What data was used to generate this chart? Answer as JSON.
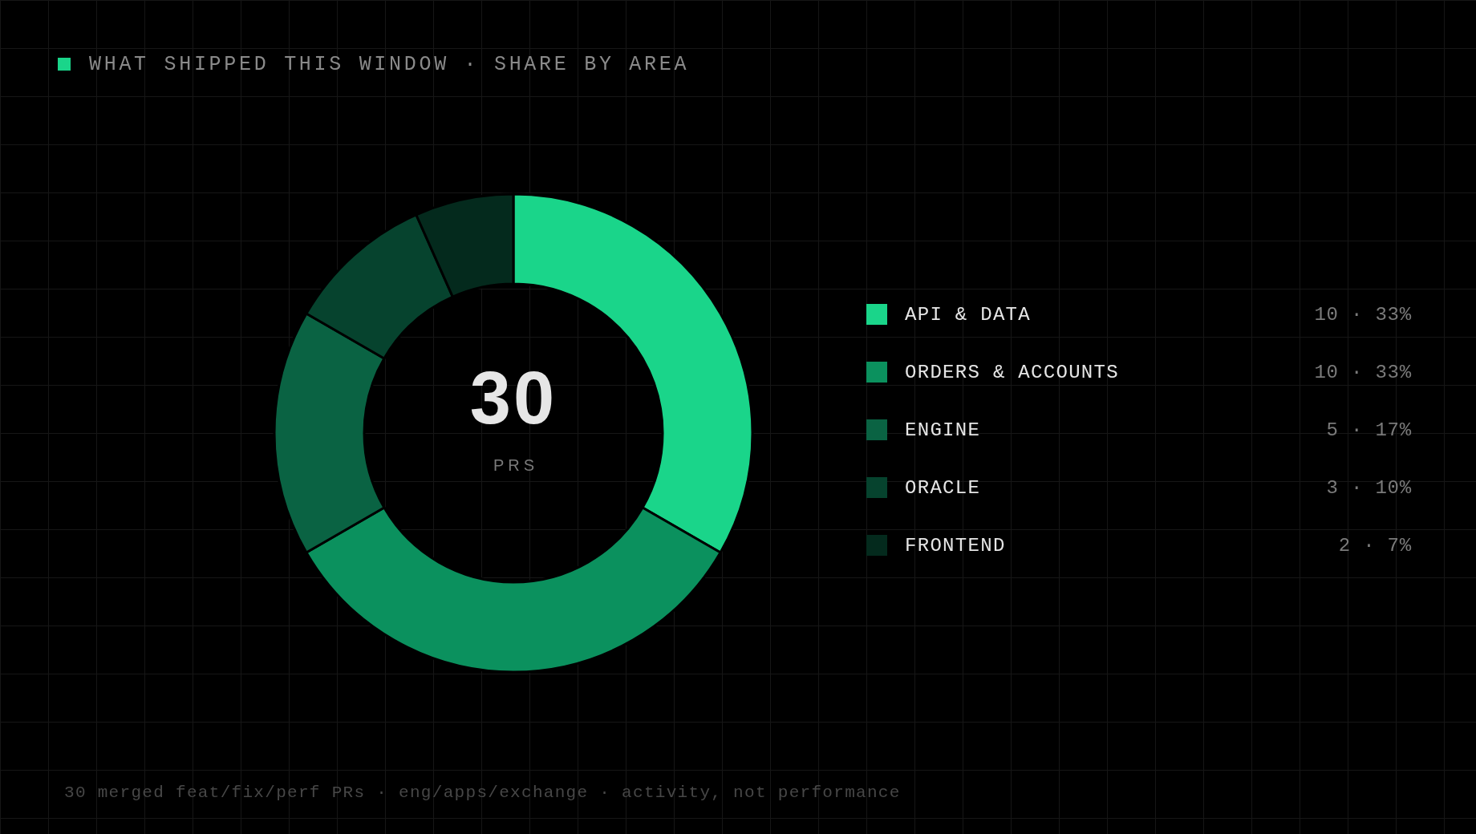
{
  "chart_data": {
    "type": "donut",
    "title": "WHAT SHIPPED THIS WINDOW · SHARE BY AREA",
    "categories": [
      "API & DATA",
      "ORDERS & ACCOUNTS",
      "ENGINE",
      "ORACLE",
      "FRONTEND"
    ],
    "values": [
      10,
      10,
      5,
      3,
      2
    ],
    "colors": [
      "#1ad58a",
      "#0b915e",
      "#0a6343",
      "#06432e",
      "#042a1d"
    ],
    "value_labels": [
      "10 · 33%",
      "10 · 33%",
      "5 · 17%",
      "3 · 10%",
      "2 · 7%"
    ],
    "legend": "right",
    "annotations": [
      "30",
      "PRS",
      "30 merged feat/fix/perf PRs · eng/apps/exchange · activity, not performance"
    ]
  }
}
